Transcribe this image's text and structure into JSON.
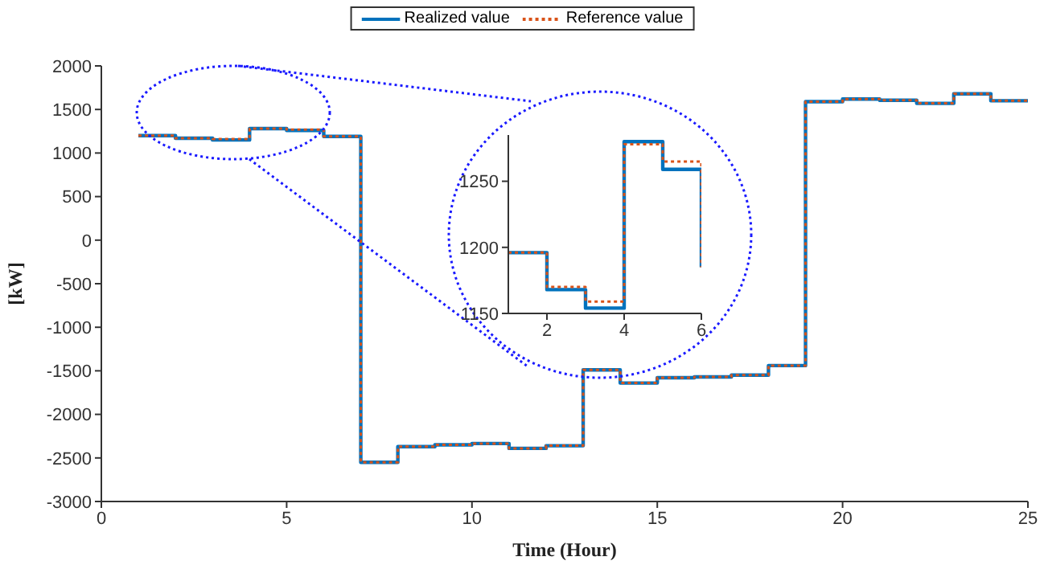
{
  "chart_data": [
    {
      "type": "step",
      "xlabel": "Time (Hour)",
      "ylabel": "[kW]",
      "x": [
        1,
        2,
        3,
        4,
        5,
        6,
        7,
        8,
        9,
        10,
        11,
        12,
        13,
        14,
        15,
        16,
        17,
        18,
        19,
        20,
        21,
        22,
        23,
        24,
        25
      ],
      "series": [
        {
          "name": "Realized value",
          "color": "#0072bd",
          "line_style": "solid",
          "values": [
            1200,
            1170,
            1150,
            1280,
            1260,
            1190,
            -2550,
            -2370,
            -2350,
            -2335,
            -2390,
            -2360,
            -1490,
            -1640,
            -1580,
            -1570,
            -1550,
            -1440,
            1590,
            1620,
            1605,
            1570,
            1680,
            1600,
            1600
          ]
        },
        {
          "name": "Reference value",
          "color": "#d95319",
          "line_style": "dotted",
          "values": [
            1200,
            1170,
            1160,
            1280,
            1270,
            1190,
            -2550,
            -2370,
            -2350,
            -2335,
            -2390,
            -2360,
            -1490,
            -1640,
            -1580,
            -1570,
            -1550,
            -1440,
            1590,
            1620,
            1605,
            1570,
            1680,
            1600,
            1600
          ]
        }
      ],
      "xlim": [
        0,
        25
      ],
      "xticks": [
        0,
        5,
        10,
        15,
        20,
        25
      ],
      "ylim": [
        -3000,
        2000
      ],
      "yticks": [
        -3000,
        -2500,
        -2000,
        -1500,
        -1000,
        -500,
        0,
        500,
        1000,
        1500,
        2000
      ],
      "legend": "top",
      "marker": "none",
      "grid": false
    },
    {
      "type": "step",
      "x": [
        1,
        2,
        3,
        4,
        5,
        6
      ],
      "series": [
        {
          "color": "#0072bd",
          "line_style": "solid",
          "values": [
            1196,
            1168,
            1154,
            1280,
            1259,
            1185
          ]
        },
        {
          "color": "#d95319",
          "line_style": "dotted",
          "values": [
            1196,
            1170,
            1159,
            1278,
            1265,
            1185
          ]
        }
      ],
      "xlim": [
        1,
        6
      ],
      "xticks": [
        2,
        4,
        6
      ],
      "ylim": [
        1150,
        1285
      ],
      "yticks": [
        1150,
        1200,
        1250
      ],
      "legend": false,
      "marker": "none",
      "grid": false
    }
  ]
}
